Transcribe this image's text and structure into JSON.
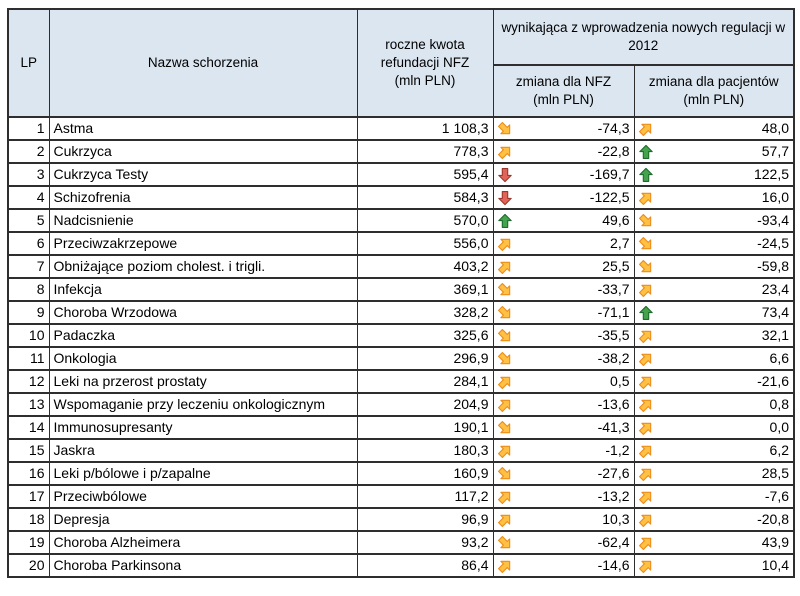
{
  "chart_data": {
    "type": "table",
    "header": {
      "lp": "LP",
      "disease": "Nazwa schorzenia",
      "refund_lines": [
        "roczne kwota",
        "refundacji NFZ",
        "(mln PLN)"
      ],
      "group": "wynikająca z wprowadzenia nowych regulacji w 2012",
      "nfz_lines": [
        "zmiana dla NFZ",
        "(mln PLN)"
      ],
      "patients_lines": [
        "zmiana dla pacjentów",
        "(mln PLN)"
      ]
    },
    "rows": [
      {
        "lp": "1",
        "name": "Astma",
        "refund": "1 108,3",
        "nfz_trend": "down-right",
        "nfz_change": "-74,3",
        "patients_trend": "up-right",
        "patients_change": "48,0"
      },
      {
        "lp": "2",
        "name": "Cukrzyca",
        "refund": "778,3",
        "nfz_trend": "up-right",
        "nfz_change": "-22,8",
        "patients_trend": "up",
        "patients_change": "57,7"
      },
      {
        "lp": "3",
        "name": "Cukrzyca Testy",
        "refund": "595,4",
        "nfz_trend": "down",
        "nfz_change": "-169,7",
        "patients_trend": "up",
        "patients_change": "122,5"
      },
      {
        "lp": "4",
        "name": "Schizofrenia",
        "refund": "584,3",
        "nfz_trend": "down",
        "nfz_change": "-122,5",
        "patients_trend": "up-right",
        "patients_change": "16,0"
      },
      {
        "lp": "5",
        "name": "Nadcisnienie",
        "refund": "570,0",
        "nfz_trend": "up",
        "nfz_change": "49,6",
        "patients_trend": "down-right",
        "patients_change": "-93,4"
      },
      {
        "lp": "6",
        "name": "Przeciwzakrzepowe",
        "refund": "556,0",
        "nfz_trend": "up-right",
        "nfz_change": "2,7",
        "patients_trend": "down-right",
        "patients_change": "-24,5"
      },
      {
        "lp": "7",
        "name": "Obniżające poziom cholest. i trigli.",
        "refund": "403,2",
        "nfz_trend": "up-right",
        "nfz_change": "25,5",
        "patients_trend": "down-right",
        "patients_change": "-59,8"
      },
      {
        "lp": "8",
        "name": "Infekcja",
        "refund": "369,1",
        "nfz_trend": "down-right",
        "nfz_change": "-33,7",
        "patients_trend": "up-right",
        "patients_change": "23,4"
      },
      {
        "lp": "9",
        "name": "Choroba Wrzodowa",
        "refund": "328,2",
        "nfz_trend": "down-right",
        "nfz_change": "-71,1",
        "patients_trend": "up",
        "patients_change": "73,4"
      },
      {
        "lp": "10",
        "name": "Padaczka",
        "refund": "325,6",
        "nfz_trend": "down-right",
        "nfz_change": "-35,5",
        "patients_trend": "up-right",
        "patients_change": "32,1"
      },
      {
        "lp": "11",
        "name": "Onkologia",
        "refund": "296,9",
        "nfz_trend": "down-right",
        "nfz_change": "-38,2",
        "patients_trend": "up-right",
        "patients_change": "6,6"
      },
      {
        "lp": "12",
        "name": "Leki na przerost prostaty",
        "refund": "284,1",
        "nfz_trend": "up-right",
        "nfz_change": "0,5",
        "patients_trend": "up-right",
        "patients_change": "-21,6"
      },
      {
        "lp": "13",
        "name": "Wspomaganie przy leczeniu onkologicznym",
        "refund": "204,9",
        "nfz_trend": "up-right",
        "nfz_change": "-13,6",
        "patients_trend": "up-right",
        "patients_change": "0,8"
      },
      {
        "lp": "14",
        "name": "Immunosupresanty",
        "refund": "190,1",
        "nfz_trend": "down-right",
        "nfz_change": "-41,3",
        "patients_trend": "up-right",
        "patients_change": "0,0"
      },
      {
        "lp": "15",
        "name": "Jaskra",
        "refund": "180,3",
        "nfz_trend": "up-right",
        "nfz_change": "-1,2",
        "patients_trend": "up-right",
        "patients_change": "6,2"
      },
      {
        "lp": "16",
        "name": "Leki p/bólowe i p/zapalne",
        "refund": "160,9",
        "nfz_trend": "down-right",
        "nfz_change": "-27,6",
        "patients_trend": "up-right",
        "patients_change": "28,5"
      },
      {
        "lp": "17",
        "name": "Przeciwbólowe",
        "refund": "117,2",
        "nfz_trend": "up-right",
        "nfz_change": "-13,2",
        "patients_trend": "up-right",
        "patients_change": "-7,6"
      },
      {
        "lp": "18",
        "name": "Depresja",
        "refund": "96,9",
        "nfz_trend": "up-right",
        "nfz_change": "10,3",
        "patients_trend": "up-right",
        "patients_change": "-20,8"
      },
      {
        "lp": "19",
        "name": "Choroba Alzheimera",
        "refund": "93,2",
        "nfz_trend": "down-right",
        "nfz_change": "-62,4",
        "patients_trend": "up-right",
        "patients_change": "43,9"
      },
      {
        "lp": "20",
        "name": "Choroba Parkinsona",
        "refund": "86,4",
        "nfz_trend": "up-right",
        "nfz_change": "-14,6",
        "patients_trend": "up-right",
        "patients_change": "10,4"
      }
    ],
    "layout": {
      "columns_order": [
        "lp",
        "disease",
        "refund",
        "nfz_change",
        "patients_change"
      ],
      "grid": "on"
    }
  },
  "colors": {
    "header_bg": "#dce6f1",
    "grid_border": "#2e2e2e",
    "text": "#000000",
    "arrow_up_fill": "#44a34d",
    "arrow_up_stroke": "#1f6b2d",
    "arrow_down_fill": "#e0645a",
    "arrow_down_stroke": "#9c352c",
    "arrow_diag_fill": "#ffc043",
    "arrow_diag_stroke": "#ec8d1a"
  }
}
